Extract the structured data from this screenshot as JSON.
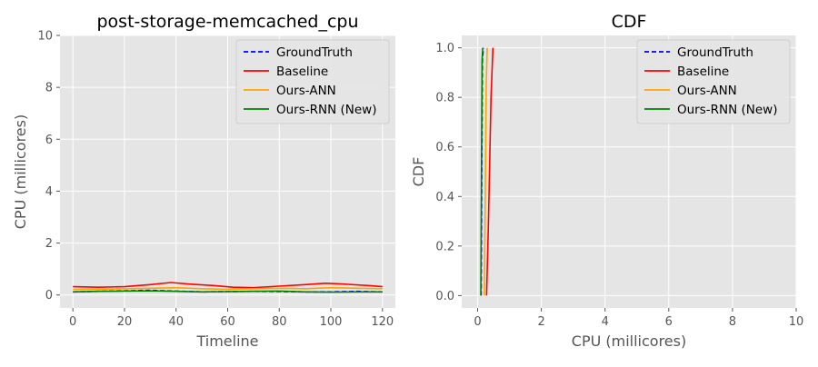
{
  "chart_data": [
    {
      "type": "line",
      "title": "post-storage-memcached_cpu",
      "xlabel": "Timeline",
      "ylabel": "CPU (millicores)",
      "xlim": [
        -5,
        125
      ],
      "ylim": [
        -0.5,
        10
      ],
      "xticks": [
        0,
        20,
        40,
        60,
        80,
        100,
        120
      ],
      "yticks": [
        0,
        2,
        4,
        6,
        8,
        10
      ],
      "grid": true,
      "legend_position": "top-right",
      "series": [
        {
          "name": "GroundTruth",
          "color": "#0000ff",
          "dash": "dashed",
          "x": [
            0,
            10,
            20,
            30,
            40,
            50,
            60,
            70,
            80,
            90,
            100,
            110,
            120
          ],
          "y": [
            0.12,
            0.14,
            0.16,
            0.18,
            0.15,
            0.12,
            0.13,
            0.14,
            0.13,
            0.12,
            0.12,
            0.14,
            0.12
          ]
        },
        {
          "name": "Baseline",
          "color": "#ff0000",
          "dash": "solid",
          "x": [
            0,
            10,
            20,
            30,
            38,
            45,
            55,
            62,
            70,
            80,
            90,
            98,
            105,
            115,
            120
          ],
          "y": [
            0.32,
            0.3,
            0.32,
            0.4,
            0.48,
            0.42,
            0.36,
            0.3,
            0.28,
            0.34,
            0.4,
            0.45,
            0.42,
            0.36,
            0.32
          ]
        },
        {
          "name": "Ours-ANN",
          "color": "#ffa500",
          "dash": "solid",
          "x": [
            0,
            10,
            20,
            30,
            40,
            50,
            60,
            70,
            80,
            90,
            100,
            110,
            120
          ],
          "y": [
            0.22,
            0.22,
            0.24,
            0.26,
            0.28,
            0.24,
            0.22,
            0.24,
            0.26,
            0.24,
            0.28,
            0.26,
            0.24
          ]
        },
        {
          "name": "Ours-RNN (New)",
          "color": "#008000",
          "dash": "solid",
          "x": [
            0,
            10,
            20,
            30,
            40,
            50,
            60,
            70,
            80,
            90,
            100,
            110,
            120
          ],
          "y": [
            0.12,
            0.14,
            0.15,
            0.16,
            0.14,
            0.12,
            0.13,
            0.14,
            0.15,
            0.12,
            0.11,
            0.12,
            0.12
          ]
        }
      ]
    },
    {
      "type": "line",
      "title": "CDF",
      "xlabel": "CPU (millicores)",
      "ylabel": "CDF",
      "xlim": [
        -0.5,
        10
      ],
      "ylim": [
        -0.05,
        1.05
      ],
      "xticks": [
        0,
        2,
        4,
        6,
        8,
        10
      ],
      "yticks": [
        0.0,
        0.2,
        0.4,
        0.6,
        0.8,
        1.0
      ],
      "grid": true,
      "legend_position": "top-right",
      "series": [
        {
          "name": "GroundTruth",
          "color": "#0000ff",
          "dash": "dashed",
          "x": [
            0.11,
            0.13,
            0.15,
            0.18
          ],
          "y": [
            0.0,
            0.5,
            0.95,
            1.0
          ]
        },
        {
          "name": "Baseline",
          "color": "#ff0000",
          "dash": "solid",
          "x": [
            0.28,
            0.34,
            0.42,
            0.48
          ],
          "y": [
            0.0,
            0.3,
            0.8,
            1.0
          ]
        },
        {
          "name": "Ours-ANN",
          "color": "#ffa500",
          "dash": "solid",
          "x": [
            0.21,
            0.24,
            0.27,
            0.3
          ],
          "y": [
            0.0,
            0.4,
            0.85,
            1.0
          ]
        },
        {
          "name": "Ours-RNN (New)",
          "color": "#008000",
          "dash": "solid",
          "x": [
            0.1,
            0.12,
            0.14,
            0.16
          ],
          "y": [
            0.0,
            0.5,
            0.95,
            1.0
          ]
        }
      ]
    }
  ]
}
